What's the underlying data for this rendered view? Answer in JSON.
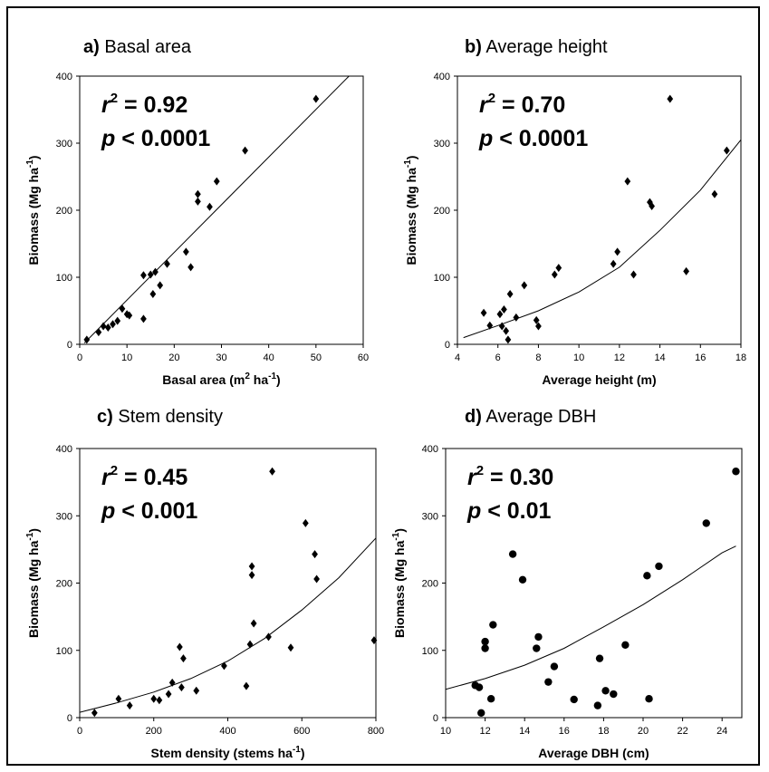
{
  "chart_data": [
    {
      "type": "scatter",
      "panel_letter": "a)",
      "panel_title": "Basal area",
      "xlabel": "Basal area (m",
      "xlabel_sup": "2",
      "xlabel_end": " ha",
      "xlabel_sup2": "-1",
      "xlabel_close": ")",
      "ylabel": "Biomass (Mg ha",
      "ylabel_sup": "-1",
      "ylabel_close": ")",
      "xlim": [
        0,
        60
      ],
      "ylim": [
        0,
        400
      ],
      "xticks": [
        0,
        10,
        20,
        30,
        40,
        50,
        60
      ],
      "yticks": [
        0,
        100,
        200,
        300,
        400
      ],
      "r2_label": "r",
      "r2_sup": "2",
      "r2_value": " = 0.92",
      "p_label": "p",
      "p_value": " < 0.0001",
      "marker": "diamond",
      "fit": {
        "type": "linear",
        "points": [
          [
            1,
            2
          ],
          [
            57,
            400
          ]
        ]
      },
      "points": [
        [
          1.5,
          7
        ],
        [
          4,
          18
        ],
        [
          5,
          27
        ],
        [
          6,
          25
        ],
        [
          7,
          30
        ],
        [
          8,
          35
        ],
        [
          9,
          53
        ],
        [
          10,
          45
        ],
        [
          10.5,
          43
        ],
        [
          13.5,
          38
        ],
        [
          13.5,
          103
        ],
        [
          15,
          104
        ],
        [
          15.5,
          75
        ],
        [
          16,
          108
        ],
        [
          17,
          88
        ],
        [
          18.5,
          120
        ],
        [
          22.5,
          138
        ],
        [
          23.5,
          115
        ],
        [
          25,
          224
        ],
        [
          25,
          213
        ],
        [
          27.5,
          205
        ],
        [
          29,
          243
        ],
        [
          35,
          289
        ],
        [
          50,
          366
        ]
      ]
    },
    {
      "type": "scatter",
      "panel_letter": "b)",
      "panel_title": "Average height",
      "xlabel": "Average height (m)",
      "ylabel": "Biomass (Mg ha",
      "ylabel_sup": "-1",
      "ylabel_close": ")",
      "xlim": [
        4,
        18
      ],
      "ylim": [
        0,
        400
      ],
      "xticks": [
        4,
        6,
        8,
        10,
        12,
        14,
        16,
        18
      ],
      "yticks": [
        0,
        100,
        200,
        300,
        400
      ],
      "r2_label": "r",
      "r2_sup": "2",
      "r2_value": " = 0.70",
      "p_label": "p",
      "p_value": " < 0.0001",
      "marker": "diamond",
      "fit": {
        "type": "exponential",
        "points": [
          [
            4.3,
            10
          ],
          [
            6,
            28
          ],
          [
            8,
            50
          ],
          [
            10,
            78
          ],
          [
            12,
            115
          ],
          [
            14,
            170
          ],
          [
            16,
            230
          ],
          [
            18,
            305
          ]
        ]
      },
      "points": [
        [
          5.3,
          47
        ],
        [
          5.6,
          28
        ],
        [
          6.1,
          45
        ],
        [
          6.2,
          27
        ],
        [
          6.3,
          52
        ],
        [
          6.4,
          20
        ],
        [
          6.5,
          7
        ],
        [
          6.6,
          75
        ],
        [
          6.9,
          40
        ],
        [
          7.3,
          88
        ],
        [
          7.9,
          36
        ],
        [
          8,
          27
        ],
        [
          8.8,
          104
        ],
        [
          9,
          114
        ],
        [
          11.7,
          120
        ],
        [
          11.9,
          138
        ],
        [
          12.4,
          243
        ],
        [
          12.7,
          104
        ],
        [
          13.5,
          212
        ],
        [
          13.6,
          206
        ],
        [
          14.5,
          366
        ],
        [
          15.3,
          109
        ],
        [
          16.7,
          224
        ],
        [
          17.3,
          289
        ]
      ]
    },
    {
      "type": "scatter",
      "panel_letter": "c)",
      "panel_title": "Stem density",
      "xlabel": "Stem density (stems ha",
      "xlabel_sup": "-1",
      "xlabel_close": ")",
      "ylabel": "Biomass (Mg ha",
      "ylabel_sup": "-1",
      "ylabel_close": ")",
      "xlim": [
        0,
        800
      ],
      "ylim": [
        0,
        400
      ],
      "xticks": [
        0,
        200,
        400,
        600,
        800
      ],
      "yticks": [
        0,
        100,
        200,
        300,
        400
      ],
      "r2_label": "r",
      "r2_sup": "2",
      "r2_value": " = 0.45",
      "p_label": "p",
      "p_value": " < 0.001",
      "marker": "diamond",
      "fit": {
        "type": "exponential",
        "points": [
          [
            0,
            8
          ],
          [
            100,
            22
          ],
          [
            200,
            38
          ],
          [
            300,
            58
          ],
          [
            400,
            84
          ],
          [
            500,
            118
          ],
          [
            600,
            160
          ],
          [
            700,
            208
          ],
          [
            800,
            267
          ]
        ]
      },
      "points": [
        [
          40,
          7
        ],
        [
          105,
          28
        ],
        [
          135,
          18
        ],
        [
          200,
          28
        ],
        [
          215,
          26
        ],
        [
          240,
          35
        ],
        [
          250,
          52
        ],
        [
          270,
          105
        ],
        [
          275,
          45
        ],
        [
          280,
          88
        ],
        [
          315,
          40
        ],
        [
          390,
          77
        ],
        [
          450,
          47
        ],
        [
          460,
          109
        ],
        [
          465,
          212
        ],
        [
          465,
          225
        ],
        [
          470,
          140
        ],
        [
          510,
          120
        ],
        [
          520,
          366
        ],
        [
          570,
          104
        ],
        [
          610,
          289
        ],
        [
          635,
          243
        ],
        [
          640,
          206
        ],
        [
          795,
          115
        ]
      ]
    },
    {
      "type": "scatter",
      "panel_letter": "d)",
      "panel_title": "Average DBH",
      "xlabel": "Average DBH (cm)",
      "ylabel": "Biomass (Mg ha",
      "ylabel_sup": "-1",
      "ylabel_close": ")",
      "xlim": [
        10,
        25
      ],
      "ylim": [
        0,
        400
      ],
      "xticks": [
        10,
        12,
        14,
        16,
        18,
        20,
        22,
        24
      ],
      "yticks": [
        0,
        100,
        200,
        300,
        400
      ],
      "r2_label": "r",
      "r2_sup": "2",
      "r2_value": " = 0.30",
      "p_label": "p",
      "p_value": " < 0.01",
      "marker": "circle",
      "fit": {
        "type": "exponential",
        "points": [
          [
            10,
            42
          ],
          [
            12,
            58
          ],
          [
            14,
            78
          ],
          [
            16,
            103
          ],
          [
            18,
            135
          ],
          [
            20,
            168
          ],
          [
            22,
            205
          ],
          [
            24,
            245
          ],
          [
            24.7,
            255
          ]
        ]
      },
      "points": [
        [
          11.5,
          48
        ],
        [
          11.7,
          45
        ],
        [
          11.8,
          7
        ],
        [
          12,
          113
        ],
        [
          12,
          103
        ],
        [
          12.3,
          28
        ],
        [
          12.4,
          138
        ],
        [
          13.4,
          243
        ],
        [
          13.9,
          205
        ],
        [
          14.6,
          103
        ],
        [
          14.7,
          120
        ],
        [
          15.2,
          53
        ],
        [
          15.5,
          76
        ],
        [
          16.5,
          27
        ],
        [
          17.7,
          18
        ],
        [
          17.8,
          88
        ],
        [
          18.1,
          40
        ],
        [
          18.5,
          35
        ],
        [
          19.1,
          108
        ],
        [
          20.2,
          211
        ],
        [
          20.3,
          28
        ],
        [
          20.8,
          225
        ],
        [
          23.2,
          289
        ],
        [
          24.7,
          366
        ]
      ]
    }
  ]
}
